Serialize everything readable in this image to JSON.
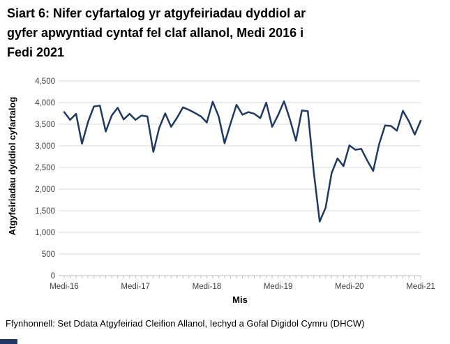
{
  "page": {
    "title_lines": [
      "Siart 6: Nifer cyfartalog yr atgyfeiriadau dyddiol ar",
      "gyfer apwyntiad cyntaf fel claf allanol, Medi 2016 i",
      "Fedi 2021"
    ],
    "footer": "Ffynhonnell: Set Ddata Atgyfeiriad Cleifion Allanol, Iechyd a Gofal Digidol Cymru (DHCW)"
  },
  "colors": {
    "line": "#1f3864",
    "gridline": "#d9d9d9",
    "axis": "#bfbfbf",
    "tick_text": "#404040",
    "title_text": "#000000",
    "accent_bar": "#1f3864"
  },
  "chart_data": {
    "type": "line",
    "title": "Siart 6: Nifer cyfartalog yr atgyfeiriadau dyddiol ar gyfer apwyntiad cyntaf fel claf allanol, Medi 2016 i Fedi 2021",
    "xlabel": "Mis",
    "ylabel": "Atgyfeiriadau dyddiol cyfartalog",
    "ylim": [
      0,
      4500
    ],
    "grid": "horizontal",
    "legend": "none",
    "y_ticks": [
      0,
      500,
      1000,
      1500,
      2000,
      2500,
      3000,
      3500,
      4000,
      4500
    ],
    "y_tick_labels": [
      "0",
      "500",
      "1,000",
      "1,500",
      "2,000",
      "2,500",
      "3,000",
      "3,500",
      "4,000",
      "4,500"
    ],
    "x_tick_labels": [
      "Medi-16",
      "Medi-17",
      "Medi-18",
      "Medi-19",
      "Medi-20",
      "Medi-21"
    ],
    "x_tick_every_months": 12,
    "series": [
      {
        "name": "Atgyfeiriadau dyddiol cyfartalog",
        "color": "#1f3864",
        "months": [
          "2016-09",
          "2016-10",
          "2016-11",
          "2016-12",
          "2017-01",
          "2017-02",
          "2017-03",
          "2017-04",
          "2017-05",
          "2017-06",
          "2017-07",
          "2017-08",
          "2017-09",
          "2017-10",
          "2017-11",
          "2017-12",
          "2018-01",
          "2018-02",
          "2018-03",
          "2018-04",
          "2018-05",
          "2018-06",
          "2018-07",
          "2018-08",
          "2018-09",
          "2018-10",
          "2018-11",
          "2018-12",
          "2019-01",
          "2019-02",
          "2019-03",
          "2019-04",
          "2019-05",
          "2019-06",
          "2019-07",
          "2019-08",
          "2019-09",
          "2019-10",
          "2019-11",
          "2019-12",
          "2020-01",
          "2020-02",
          "2020-03",
          "2020-04",
          "2020-05",
          "2020-06",
          "2020-07",
          "2020-08",
          "2020-09",
          "2020-10",
          "2020-11",
          "2020-12",
          "2021-01",
          "2021-02",
          "2021-03",
          "2021-04",
          "2021-05",
          "2021-06",
          "2021-07",
          "2021-08",
          "2021-09"
        ],
        "values": [
          3780,
          3600,
          3740,
          3050,
          3550,
          3910,
          3930,
          3330,
          3700,
          3880,
          3610,
          3740,
          3600,
          3700,
          3680,
          2860,
          3420,
          3750,
          3440,
          3650,
          3890,
          3830,
          3760,
          3680,
          3540,
          4020,
          3680,
          3060,
          3520,
          3950,
          3720,
          3780,
          3740,
          3640,
          4000,
          3440,
          3710,
          4030,
          3610,
          3120,
          3820,
          3800,
          2400,
          1250,
          1570,
          2370,
          2710,
          2530,
          3010,
          2910,
          2930,
          2660,
          2420,
          3040,
          3470,
          3460,
          3350,
          3810,
          3570,
          3260,
          3580
        ]
      }
    ]
  }
}
